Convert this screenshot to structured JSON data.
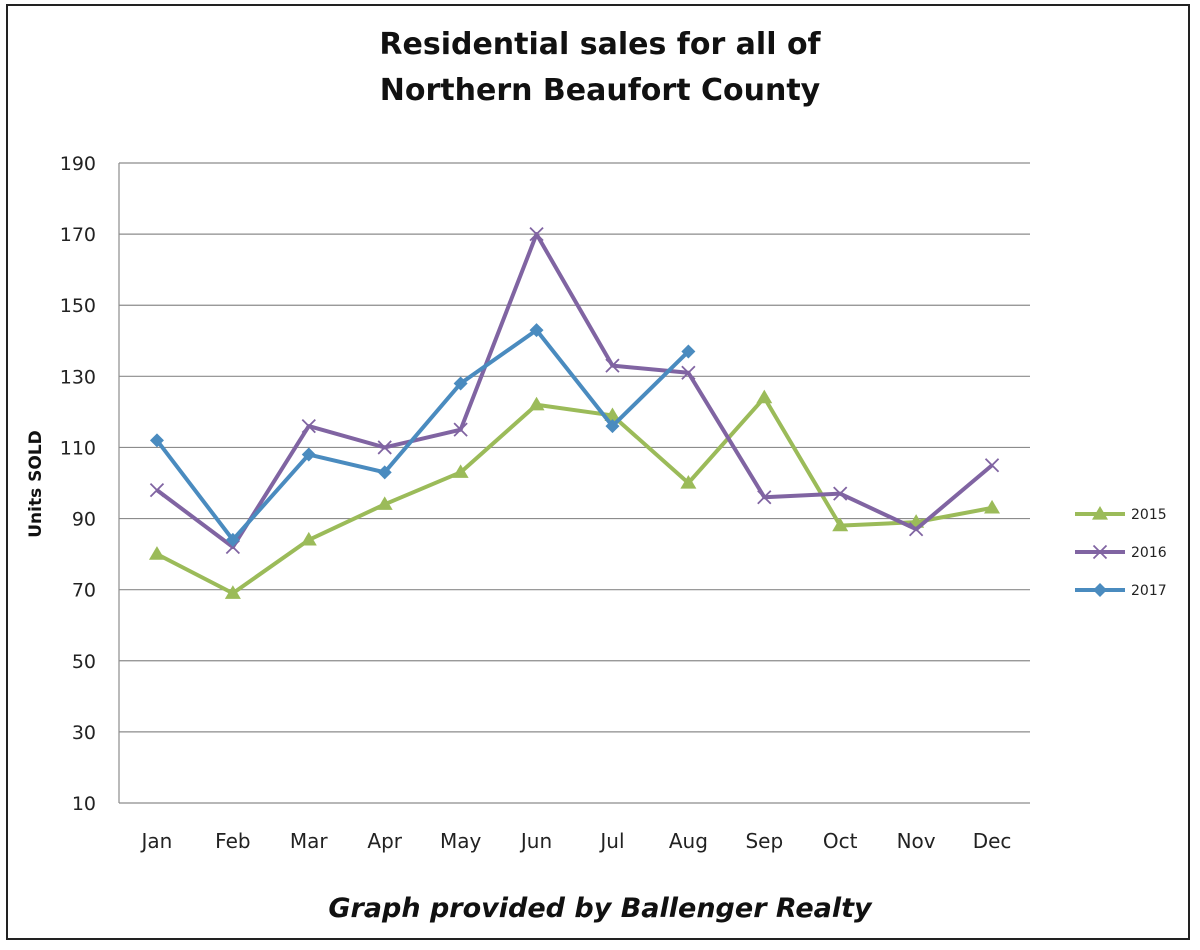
{
  "chart_data": {
    "type": "line",
    "title": [
      "Residential sales for all of",
      "Northern Beaufort County"
    ],
    "xlabel": "",
    "ylabel": "Units SOLD",
    "categories": [
      "Jan",
      "Feb",
      "Mar",
      "Apr",
      "May",
      "Jun",
      "Jul",
      "Aug",
      "Sep",
      "Oct",
      "Nov",
      "Dec"
    ],
    "ylim": [
      10,
      190
    ],
    "yticks": [
      10,
      30,
      50,
      70,
      90,
      110,
      130,
      150,
      170,
      190
    ],
    "grid": true,
    "legend_position": "right",
    "series": [
      {
        "name": "2015",
        "color": "#9bbb59",
        "marker": "triangle",
        "values": [
          80,
          69,
          84,
          94,
          103,
          122,
          119,
          100,
          124,
          88,
          89,
          93
        ]
      },
      {
        "name": "2016",
        "color": "#8064a2",
        "marker": "x",
        "values": [
          98,
          82,
          116,
          110,
          115,
          170,
          133,
          131,
          96,
          97,
          87,
          105
        ]
      },
      {
        "name": "2017",
        "color": "#4a8bbf",
        "marker": "diamond",
        "values": [
          112,
          84,
          108,
          103,
          128,
          143,
          116,
          137,
          null,
          null,
          null,
          null
        ]
      }
    ]
  },
  "footer": {
    "credit": "Graph provided by Ballenger Realty"
  }
}
